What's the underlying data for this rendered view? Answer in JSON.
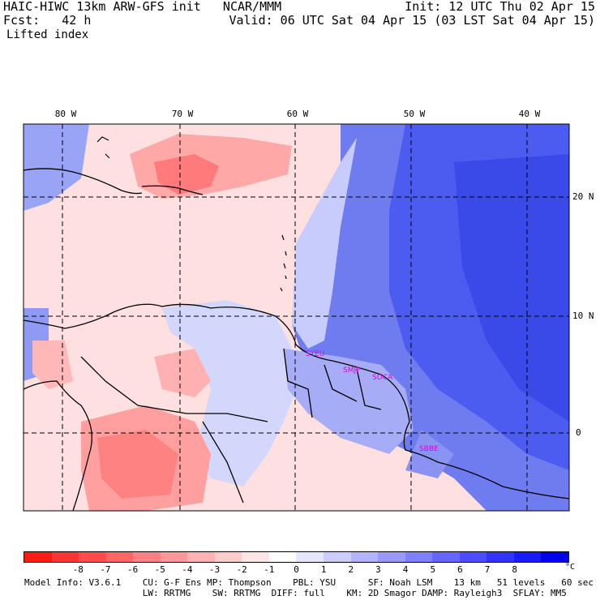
{
  "header": {
    "line1_left": "HAIC-HIWC 13km ARW-GFS init   NCAR/MMM",
    "line1_right": "Init: 12 UTC Thu 02 Apr 15",
    "line2_left": "Fcst:   42 h",
    "line2_right": "Valid: 06 UTC Sat 04 Apr 15 (03 LST Sat 04 Apr 15)",
    "field": "Lifted index"
  },
  "axes": {
    "lon_labels": [
      "80 W",
      "70 W",
      "60 W",
      "50 W",
      "40 W"
    ],
    "lat_labels": [
      "20 N",
      "10 N",
      "0"
    ]
  },
  "stations": [
    "SYEU",
    "SMJP",
    "SOCA",
    "SBBE"
  ],
  "colorbar": {
    "labels": [
      "-8",
      "-7",
      "-6",
      "-5",
      "-4",
      "-3",
      "-2",
      "-1",
      "0",
      "1",
      "2",
      "3",
      "4",
      "5",
      "6",
      "7",
      "8"
    ],
    "unit": "°C",
    "colors": [
      "#ff1a1a",
      "#ff3333",
      "#ff4d4d",
      "#ff6666",
      "#ff8080",
      "#ff9999",
      "#ffb3b3",
      "#ffcccc",
      "#ffe6e6",
      "#ffffff",
      "#e6e6ff",
      "#ccccff",
      "#b3b3ff",
      "#9999ff",
      "#8080ff",
      "#6666ff",
      "#4d4dff",
      "#3333ff",
      "#1a1aff",
      "#0000ee"
    ]
  },
  "footer": {
    "line1": "Model Info: V3.6.1    CU: G-F Ens MP: Thompson    PBL: YSU      SF: Noah LSM    13 km   51 levels   60 sec",
    "line2": "                      LW: RRTMG    SW: RRTMG  DIFF: full    KM: 2D Smagor DAMP: Rayleigh3  SFLAY: MM5"
  }
}
